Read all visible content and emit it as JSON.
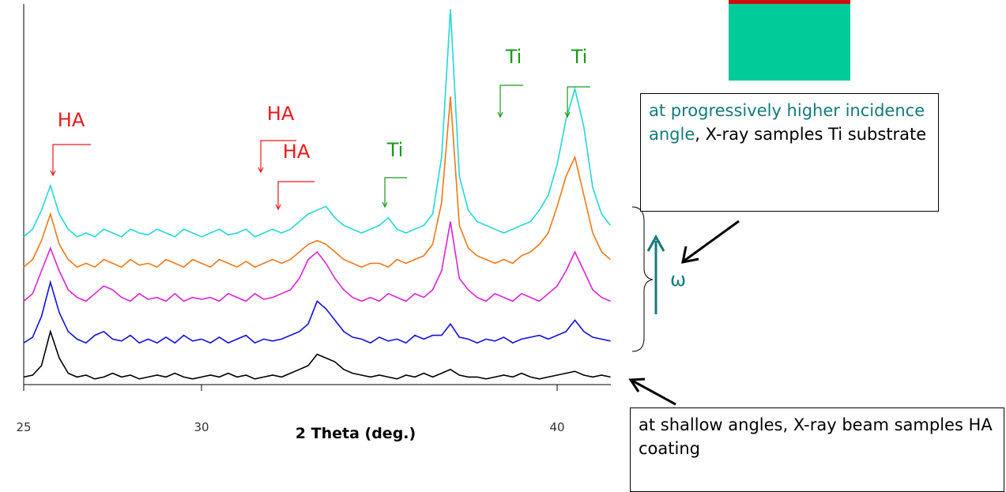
{
  "chart_data": {
    "type": "line",
    "x_label": "2 Theta (deg.)",
    "x": [
      25,
      25.25,
      25.5,
      25.75,
      26,
      26.25,
      26.5,
      26.75,
      27,
      27.25,
      27.5,
      27.75,
      28,
      28.25,
      28.5,
      28.75,
      29,
      29.25,
      29.5,
      29.75,
      30,
      30.25,
      30.5,
      30.75,
      31,
      31.25,
      31.5,
      31.75,
      32,
      32.25,
      32.5,
      32.75,
      33,
      33.25,
      33.5,
      33.75,
      34,
      34.25,
      34.5,
      34.75,
      35,
      35.25,
      35.5,
      35.75,
      36,
      36.25,
      36.5,
      36.75,
      37,
      37.25,
      37.5,
      37.75,
      38,
      38.25,
      38.5,
      38.75,
      39,
      39.25,
      39.5,
      39.75,
      40,
      40.25,
      40.5,
      40.75,
      41,
      41.25,
      41.5
    ],
    "xlim": [
      25,
      41.5
    ],
    "xticks": [
      25,
      30,
      40
    ],
    "ylim": [
      0,
      100
    ],
    "series": [
      {
        "color": "#000000",
        "values": [
          2,
          2.5,
          5,
          14,
          7,
          3,
          2,
          2.5,
          1.5,
          2,
          3,
          2,
          2.5,
          1.5,
          2,
          2.5,
          2,
          3,
          2,
          1.5,
          2,
          2.5,
          2,
          3,
          2,
          2.5,
          1.5,
          2,
          2.5,
          2,
          3,
          4,
          5,
          8,
          7,
          6,
          4,
          3,
          2.5,
          2,
          2.5,
          2,
          1.5,
          2.5,
          2,
          3,
          2,
          3,
          4,
          2.5,
          2,
          2,
          1.5,
          2,
          2.5,
          2,
          3,
          2,
          1.5,
          2,
          2.5,
          3,
          3.5,
          2.5,
          2,
          2.5,
          2
        ]
      },
      {
        "color": "#1010e0",
        "values": [
          11,
          12.5,
          18,
          27,
          19,
          14,
          12,
          11,
          13,
          14,
          12,
          11.5,
          13,
          11,
          12,
          11,
          12.5,
          11,
          13,
          11.5,
          12,
          11,
          12.5,
          11,
          12,
          13,
          11,
          12,
          11.5,
          12,
          13,
          14,
          16,
          22,
          20,
          17,
          14,
          12.5,
          12,
          11,
          12.5,
          11.5,
          12,
          11,
          13,
          12,
          13,
          13,
          16,
          12.5,
          12,
          11,
          12,
          11.5,
          12.5,
          11,
          12,
          12.5,
          13,
          12,
          13,
          14,
          17,
          14,
          12.5,
          12,
          11.5
        ]
      },
      {
        "color": "#e020d8",
        "values": [
          22,
          24,
          30,
          36,
          30,
          25,
          23,
          22,
          24,
          26,
          25,
          23,
          22,
          24,
          22.5,
          23,
          22,
          24,
          22,
          23,
          22.5,
          23,
          22,
          24,
          23,
          22,
          24,
          22.5,
          23,
          24,
          25,
          28,
          33,
          35,
          32,
          28,
          25,
          23,
          22,
          23,
          22,
          24,
          23,
          22,
          24,
          23,
          25,
          30,
          43,
          28,
          25,
          23,
          22,
          24,
          23,
          22,
          24,
          23,
          22,
          24,
          26,
          30,
          35,
          30,
          25,
          23,
          22
        ]
      },
      {
        "color": "#f07818",
        "values": [
          31,
          33,
          38,
          45,
          37,
          33,
          31,
          32,
          31,
          33,
          32,
          31,
          33,
          31.5,
          32,
          31,
          33,
          32,
          31,
          33,
          32,
          31,
          33,
          32,
          31,
          32.5,
          31,
          32,
          33,
          32,
          33,
          35,
          37,
          38,
          37,
          35,
          33,
          32,
          31,
          32,
          32,
          31,
          33,
          32,
          33,
          34,
          37,
          48,
          76,
          42,
          36,
          34,
          33,
          32,
          33,
          32,
          34,
          35,
          37,
          40,
          47,
          55,
          60,
          50,
          40,
          35,
          33
        ]
      },
      {
        "color": "#22d8d8",
        "values": [
          39,
          41,
          46,
          52.5,
          45,
          41,
          39,
          40,
          39,
          41,
          40,
          39,
          41,
          40,
          39.5,
          41,
          40,
          39,
          41,
          40,
          39,
          40,
          41,
          39.5,
          40,
          41,
          39,
          40,
          41,
          40,
          41,
          43,
          45,
          46,
          47,
          44,
          42,
          41,
          40,
          41,
          42,
          44,
          41,
          40,
          41,
          42,
          45,
          60,
          99,
          55,
          46,
          43,
          42,
          41,
          40,
          41,
          42,
          43,
          46,
          50,
          58,
          70,
          78,
          68,
          52,
          45,
          42
        ]
      }
    ],
    "peak_labels": [
      {
        "text": "HA",
        "color": "#e8191b"
      },
      {
        "text": "HA",
        "color": "#e8191b"
      },
      {
        "text": "HA",
        "color": "#e8191b"
      },
      {
        "text": "Ti",
        "color": "#1a9a1a"
      },
      {
        "text": "Ti",
        "color": "#1a9a1a"
      },
      {
        "text": "Ti",
        "color": "#1a9a1a"
      }
    ],
    "annotations": [
      "at progressively higher incidence angle",
      ", X-ray samples Ti substrate",
      "at shallow angles, X-ray beam samples HA coating",
      "ω"
    ]
  }
}
